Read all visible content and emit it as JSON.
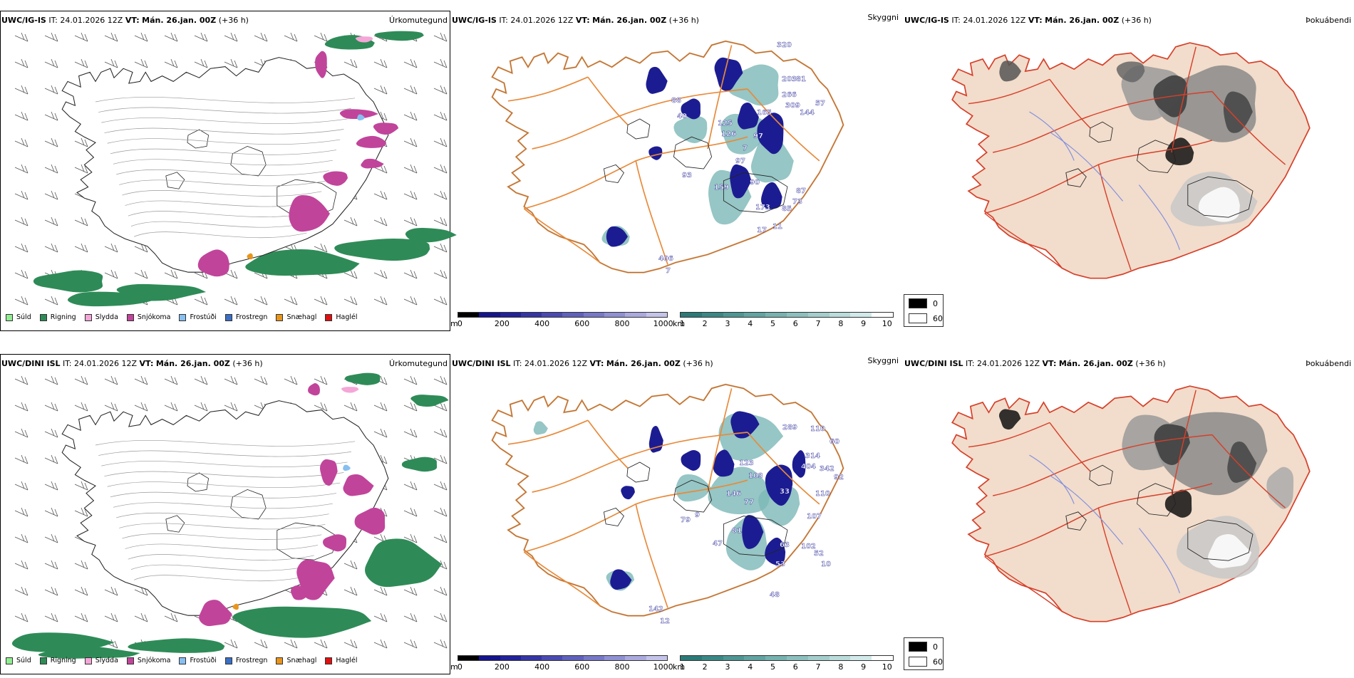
{
  "rows": [
    {
      "model": "UWC/IG-IS",
      "it_label": "IT:",
      "it_value": "24.01.2026 12Z",
      "vt_label": "VT:",
      "vt_value": "Mán. 26.jan. 00Z",
      "lead": "(+36 h)"
    },
    {
      "model": "UWC/DINI ISL",
      "it_label": "IT:",
      "it_value": "24.01.2026 12Z",
      "vt_label": "VT:",
      "vt_value": "Mán. 26.jan. 00Z",
      "lead": "(+36 h)"
    }
  ],
  "panel_titles": {
    "precip_type": "Úrkomutegund",
    "visibility": "Skyggni",
    "fog": "Þokuábendi"
  },
  "precip_legend": [
    {
      "label": "Súld",
      "color": "#90ee90"
    },
    {
      "label": "Rigning",
      "color": "#2e8b57"
    },
    {
      "label": "Slydda",
      "color": "#f4a6d7"
    },
    {
      "label": "Snjókoma",
      "color": "#c1449b"
    },
    {
      "label": "Frostúði",
      "color": "#87bff0"
    },
    {
      "label": "Frostregn",
      "color": "#3a6fc4"
    },
    {
      "label": "Snæhagl",
      "color": "#e8951c"
    },
    {
      "label": "Haglél",
      "color": "#e01010"
    }
  ],
  "vis_m_bar": {
    "unit": "m",
    "ticks": [
      "0",
      "200",
      "400",
      "600",
      "800",
      "1000"
    ],
    "colors": [
      "#000000",
      "#14148c",
      "#22229a",
      "#3535a6",
      "#4a4ab2",
      "#6060bd",
      "#7878c8",
      "#9090d4",
      "#aaaadf",
      "#c4c4ea"
    ]
  },
  "vis_km_bar": {
    "unit": "km",
    "ticks": [
      "1",
      "2",
      "3",
      "4",
      "5",
      "6",
      "7",
      "8",
      "9",
      "10"
    ],
    "colors": [
      "#2a7a78",
      "#3a8886",
      "#4d9694",
      "#61a4a2",
      "#76b2b0",
      "#8cc0be",
      "#a3cecc",
      "#badcda",
      "#d2eae9",
      "#ffffff"
    ]
  },
  "fog_key": {
    "high": "0",
    "low": "60"
  },
  "vis_labels": [
    [
      "320",
      "203",
      "81",
      "266",
      "309",
      "144",
      "57",
      "88",
      "40",
      "165",
      "125",
      "126",
      "97",
      "7",
      "97",
      "93",
      "159",
      "90",
      "87",
      "73",
      "173",
      "85",
      "17",
      "11",
      "406",
      "7"
    ],
    [
      "289",
      "110",
      "60",
      "314",
      "404",
      "342",
      "92",
      "123",
      "103",
      "146",
      "33",
      "77",
      "110",
      "107",
      "79",
      "9",
      "81",
      "47",
      "63",
      "102",
      "52",
      "53",
      "10",
      "48",
      "142",
      "12"
    ]
  ]
}
